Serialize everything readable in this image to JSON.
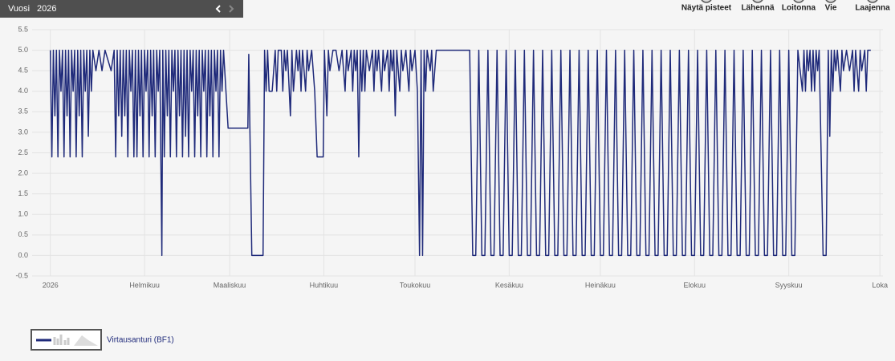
{
  "toolbar": {
    "label": "Vuosi",
    "year": "2026"
  },
  "buttons": [
    "Näytä pisteet",
    "Lähennä",
    "Loitonna",
    "Vie",
    "Laajenna"
  ],
  "chart_data": {
    "type": "line",
    "x": [
      0,
      0.5,
      1,
      1.5,
      2,
      2.5,
      3,
      3.5,
      4,
      4.5,
      5,
      5.5,
      6,
      6.5,
      7,
      7.5,
      8,
      8.5,
      9,
      9.5,
      10,
      10.5,
      11,
      11.5,
      12,
      12.5,
      13,
      13.5,
      14,
      15,
      16,
      17,
      18,
      20,
      21,
      21.5,
      22,
      22.5,
      23,
      23.5,
      24,
      24.5,
      25,
      25.5,
      26,
      26.5,
      27,
      27.5,
      28,
      28.5,
      29,
      29.5,
      30,
      30.5,
      31,
      31.5,
      32,
      32.5,
      33,
      33.5,
      34,
      34.5,
      35,
      35.5,
      36,
      36.7,
      37,
      37.5,
      38,
      38.5,
      39,
      39.5,
      40,
      40.5,
      41,
      41.5,
      42,
      42.5,
      43,
      43.5,
      44,
      44.5,
      45,
      45.5,
      46,
      46.5,
      47,
      47.5,
      48,
      48.5,
      49,
      49.5,
      50,
      50.5,
      51,
      51.5,
      52,
      52.5,
      53,
      53.5,
      54,
      54.5,
      55,
      55.5,
      56,
      56.5,
      57,
      58.5,
      65,
      65.3,
      66.3,
      70,
      70.5,
      71,
      71.5,
      72,
      73,
      74,
      74.5,
      75,
      76,
      76.5,
      77,
      77.5,
      78,
      79,
      79.5,
      80,
      81,
      81.5,
      82,
      82.5,
      83,
      84,
      84.5,
      85,
      86,
      87,
      87.8,
      89.8,
      90.2,
      91,
      91.5,
      92,
      93,
      94,
      95,
      96,
      97,
      97.5,
      98,
      99,
      99.5,
      100,
      100.5,
      101,
      101.5,
      102,
      102.5,
      103,
      103.5,
      104,
      105,
      106,
      106.5,
      107,
      107.5,
      108,
      109,
      109.5,
      110,
      111,
      111.5,
      112,
      112.5,
      113,
      113.5,
      114,
      115,
      115.5,
      116,
      117,
      118,
      118.5,
      119,
      120,
      120.8,
      121.5,
      122,
      122.5,
      123,
      123.5,
      124,
      125,
      125.5,
      126,
      127,
      128,
      137,
      138,
      139,
      140,
      141,
      142,
      143,
      144,
      145,
      146,
      147,
      148,
      149,
      150,
      151,
      152,
      153,
      154,
      155,
      156,
      157,
      158,
      159,
      160,
      161,
      162,
      163,
      164,
      165,
      166,
      167,
      168,
      169,
      170,
      171,
      172,
      173,
      174,
      175,
      176,
      177,
      178,
      179,
      180,
      181,
      182,
      183,
      184,
      185,
      186,
      187,
      188,
      189,
      190,
      191,
      192,
      193,
      194,
      195,
      196,
      197,
      198,
      199,
      200,
      201,
      202,
      203,
      204,
      205,
      206,
      207,
      208,
      209,
      210,
      211,
      212,
      213,
      214,
      215,
      216,
      217,
      218,
      219,
      220,
      221,
      222,
      223,
      224,
      225,
      226,
      227,
      228,
      229,
      230,
      231,
      232,
      233,
      234,
      235,
      236,
      237,
      238,
      239,
      240,
      241,
      242,
      243,
      244,
      245,
      246,
      247.5,
      248,
      248.5,
      249,
      249.5,
      250,
      250.5,
      251,
      251.5,
      252,
      252.5,
      253,
      254.3,
      255.3,
      256,
      256.5,
      257,
      257.5,
      258,
      258.5,
      259,
      260,
      260.5,
      261,
      262,
      263,
      264,
      264.5,
      265,
      266,
      266.5,
      267,
      268,
      268.5,
      269,
      270
    ],
    "series": [
      {
        "name": "Virtausanturi (BF1)",
        "color": "#1f2a7a",
        "values": [
          5,
          2.4,
          5,
          3.4,
          5,
          2.4,
          5,
          4,
          5,
          2.4,
          5,
          3.4,
          5,
          2.4,
          5,
          4,
          5,
          2.4,
          5,
          3.4,
          5,
          2.4,
          5,
          4,
          5,
          2.9,
          5,
          4,
          5,
          4.5,
          5,
          4.5,
          5,
          4.5,
          5,
          2.4,
          5,
          3.4,
          5,
          2.9,
          5,
          3.4,
          5,
          2.4,
          5,
          4,
          5,
          2.4,
          5,
          2.4,
          5,
          3.4,
          5,
          2.4,
          5,
          4,
          5,
          2.4,
          5,
          3.4,
          5,
          2.4,
          5,
          4,
          5,
          0,
          5,
          2.4,
          5,
          3.4,
          5,
          2.4,
          5,
          4,
          5,
          2.4,
          5,
          3.4,
          5,
          2.4,
          5,
          2.9,
          5,
          2.4,
          5,
          4,
          5,
          2.4,
          5,
          3.4,
          5,
          2.4,
          5,
          4,
          5,
          2.4,
          5,
          3.4,
          5,
          2.4,
          5,
          4,
          5,
          2.4,
          5,
          4,
          5,
          3.1,
          3.1,
          4.9,
          0,
          0,
          5,
          4,
          5,
          4,
          4,
          5,
          4,
          5,
          5,
          4,
          5,
          4.5,
          5,
          3.4,
          5,
          4,
          5,
          4.5,
          5,
          4,
          5,
          4,
          5,
          4.5,
          5,
          4,
          2.4,
          2.4,
          5,
          3.4,
          5,
          4.5,
          5,
          5,
          4.5,
          5,
          4,
          5,
          4.5,
          5,
          4,
          5,
          4.5,
          5,
          2.4,
          5,
          4,
          5,
          4,
          5,
          4.5,
          5,
          4,
          5,
          4.5,
          5,
          4,
          5,
          4.5,
          5,
          4,
          5,
          4.5,
          5,
          3.4,
          5,
          4,
          5,
          4.5,
          5,
          4,
          5,
          4.5,
          5,
          4,
          0,
          5,
          0,
          5,
          4,
          5,
          4.5,
          5,
          4,
          5,
          5,
          5,
          5,
          0,
          0,
          5,
          0,
          0,
          5,
          0,
          0,
          5,
          0,
          0,
          5,
          0,
          0,
          5,
          0,
          0,
          5,
          0,
          0,
          5,
          0,
          0,
          5,
          0,
          0,
          5,
          0,
          0,
          5,
          0,
          0,
          5,
          0,
          0,
          5,
          0,
          0,
          5,
          0,
          0,
          5,
          0,
          0,
          5,
          0,
          0,
          5,
          0,
          0,
          5,
          0,
          0,
          5,
          0,
          0,
          5,
          0,
          0,
          5,
          0,
          0,
          5,
          0,
          0,
          5,
          0,
          0,
          5,
          0,
          0,
          5,
          0,
          0,
          5,
          0,
          0,
          5,
          0,
          0,
          5,
          0,
          0,
          5,
          0,
          0,
          5,
          0,
          0,
          5,
          0,
          0,
          5,
          0,
          0,
          5,
          0,
          0,
          5,
          0,
          0,
          5,
          0,
          0,
          5,
          0,
          0,
          5,
          4,
          5,
          4,
          5,
          4.5,
          5,
          4,
          5,
          4,
          5,
          4.5,
          5,
          0,
          0,
          5,
          2.9,
          5,
          4,
          5,
          4.5,
          5,
          4,
          5,
          4.5,
          5,
          4.5,
          5,
          4,
          5,
          4,
          5,
          4.5,
          5,
          4,
          5,
          5
        ]
      }
    ],
    "xlim": [
      -6,
      274
    ],
    "xticks": [
      {
        "value": 0,
        "label": "2026"
      },
      {
        "value": 31,
        "label": "Helmikuu"
      },
      {
        "value": 59,
        "label": "Maaliskuu"
      },
      {
        "value": 90,
        "label": "Huhtikuu"
      },
      {
        "value": 120,
        "label": "Toukokuu"
      },
      {
        "value": 151,
        "label": "Kesäkuu"
      },
      {
        "value": 181,
        "label": "Heinäkuu"
      },
      {
        "value": 212,
        "label": "Elokuu"
      },
      {
        "value": 243,
        "label": "Syyskuu"
      },
      {
        "value": 273,
        "label": "Loka"
      }
    ],
    "ylim": [
      -0.5,
      5.5
    ],
    "yticks": [
      5.5,
      {
        "value": 5,
        "label": "5.0"
      },
      4.5,
      {
        "value": 4,
        "label": "4.0"
      },
      3.5,
      {
        "value": 3,
        "label": "3.0"
      },
      2.5,
      {
        "value": 2,
        "label": "2.0"
      },
      1.5,
      {
        "value": 1,
        "label": "1.0"
      },
      0.5,
      {
        "value": 0,
        "label": "0.0"
      },
      -0.5
    ],
    "grid": true
  }
}
